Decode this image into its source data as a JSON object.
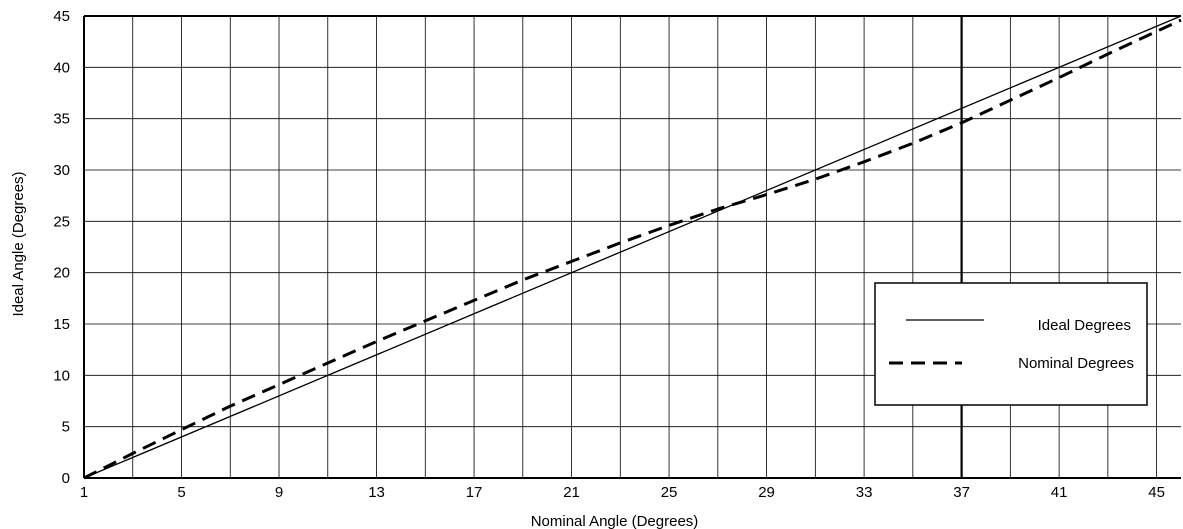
{
  "chart_data": {
    "type": "line",
    "title": "",
    "xlabel": "Nominal Angle (Degrees)",
    "ylabel": "Ideal Angle (Degrees)",
    "xlim": [
      1,
      46
    ],
    "ylim": [
      0,
      45
    ],
    "x_ticks": [
      1,
      5,
      9,
      13,
      17,
      21,
      25,
      29,
      33,
      37,
      41,
      45
    ],
    "y_ticks": [
      0,
      5,
      10,
      15,
      20,
      25,
      30,
      35,
      40,
      45
    ],
    "grid": true,
    "grid_x_step": 2,
    "grid_y_step": 5,
    "highlight_x": 37,
    "legend_position": "lower-right",
    "series": [
      {
        "name": "Ideal Degrees",
        "style": "solid",
        "color": "#000000",
        "x": [
          1,
          46
        ],
        "y": [
          0,
          45
        ]
      },
      {
        "name": "Nominal Degrees",
        "style": "dashed",
        "color": "#000000",
        "x": [
          1,
          3,
          5,
          7,
          9,
          11,
          13,
          15,
          17,
          19,
          21,
          23,
          25,
          27,
          29,
          31,
          33,
          35,
          37,
          39,
          41,
          43,
          45,
          46
        ],
        "y": [
          0,
          2.4,
          4.7,
          7.0,
          9.1,
          11.2,
          13.3,
          15.3,
          17.3,
          19.3,
          21.1,
          22.9,
          24.6,
          26.2,
          27.6,
          29.1,
          30.8,
          32.6,
          34.6,
          36.8,
          39.0,
          41.3,
          43.5,
          44.6
        ]
      }
    ]
  }
}
